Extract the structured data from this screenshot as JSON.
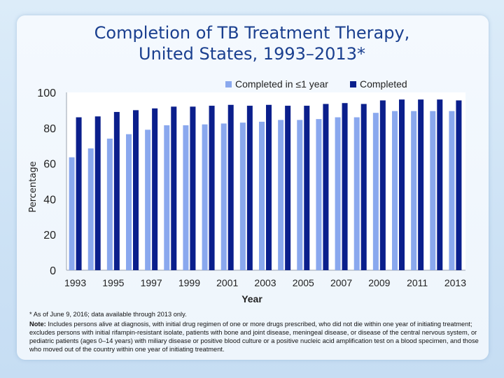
{
  "title": {
    "line1": "Completion of TB Treatment Therapy,",
    "line2": "United States, 1993–2013*"
  },
  "chart_data": {
    "type": "bar",
    "xlabel": "Year",
    "ylabel": "Percentage",
    "ylim": [
      0,
      100
    ],
    "yticks": [
      0,
      20,
      40,
      60,
      80,
      100
    ],
    "grid": false,
    "legend_position": "top-right",
    "categories": [
      "1993",
      "1994",
      "1995",
      "1996",
      "1997",
      "1998",
      "1999",
      "2000",
      "2001",
      "2002",
      "2003",
      "2004",
      "2005",
      "2006",
      "2007",
      "2008",
      "2009",
      "2010",
      "2011",
      "2012",
      "2013"
    ],
    "tick_labels": [
      "1993",
      "",
      "1995",
      "",
      "1997",
      "",
      "1999",
      "",
      "2001",
      "",
      "2003",
      "",
      "2005",
      "",
      "2007",
      "",
      "2009",
      "",
      "2011",
      "",
      "2013"
    ],
    "series": [
      {
        "name": "Completed in ≤1 year",
        "color": "#8aa8ee",
        "values": [
          63.5,
          68.5,
          74,
          76.5,
          79,
          81.5,
          81.5,
          82,
          82.5,
          83,
          83.5,
          84.5,
          84.5,
          85,
          86,
          86,
          88.5,
          89.5,
          89.5,
          89.5,
          89.5
        ]
      },
      {
        "name": "Completed",
        "color": "#0b1f8c",
        "values": [
          86,
          86.5,
          89,
          90,
          91,
          92,
          92,
          92.5,
          93,
          92.5,
          93,
          92.5,
          92.5,
          93.5,
          94,
          93.5,
          95.5,
          96,
          96,
          96,
          95.5
        ]
      }
    ]
  },
  "footnotes": {
    "star": "* As of June 9, 2016; data available through 2013 only.",
    "note_label": "Note:",
    "note_text": " Includes persons alive at diagnosis, with initial drug regimen of one or more drugs prescribed, who did not die within one year of initiating treatment; excludes persons with initial rifampin-resistant isolate, patients with bone and joint disease, meningeal disease, or disease of the central nervous system, or pediatric patients (ages 0–14 years) with miliary disease or positive blood culture or a positive nucleic acid amplification test on a blood specimen, and those who moved out of the country within one year of initiating treatment."
  }
}
